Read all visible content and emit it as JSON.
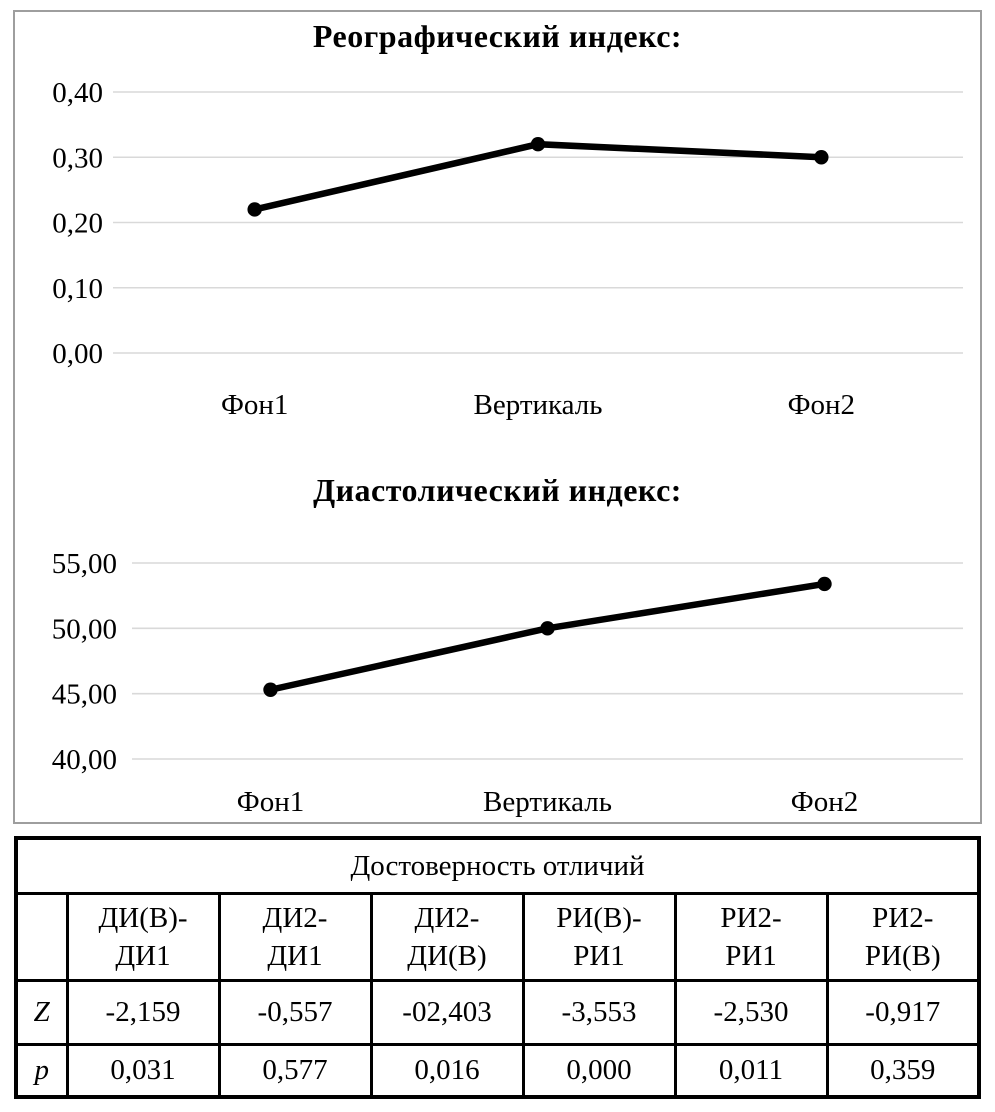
{
  "chart_data": [
    {
      "type": "line",
      "title": "Реографический индекс:",
      "categories": [
        "Фон1",
        "Вертикаль",
        "Фон2"
      ],
      "values": [
        0.22,
        0.32,
        0.3
      ],
      "ylim": [
        0.0,
        0.4
      ],
      "ytick_labels": [
        "0,40",
        "0,30",
        "0,20",
        "0,10",
        "0,00"
      ],
      "ytick_values": [
        0.4,
        0.3,
        0.2,
        0.1,
        0.0
      ],
      "xlabel": "",
      "ylabel": "",
      "grid": true,
      "legend": "none",
      "line_color": "#000000",
      "gridline_color": "#d9d9d9",
      "marker": "circle"
    },
    {
      "type": "line",
      "title": "Диастолический индекс:",
      "categories": [
        "Фон1",
        "Вертикаль",
        "Фон2"
      ],
      "values": [
        45.3,
        50.0,
        53.4
      ],
      "ylim": [
        40.0,
        55.0
      ],
      "ytick_labels": [
        "55,00",
        "50,00",
        "45,00",
        "40,00"
      ],
      "ytick_values": [
        55.0,
        50.0,
        45.0,
        40.0
      ],
      "xlabel": "",
      "ylabel": "",
      "grid": true,
      "legend": "none",
      "line_color": "#000000",
      "gridline_color": "#d9d9d9",
      "marker": "circle"
    }
  ],
  "table": {
    "title": "Достоверность отличий",
    "corner": "",
    "columns": [
      "ДИ(В)-\nДИ1",
      "ДИ2-\nДИ1",
      "ДИ2-\nДИ(В)",
      "РИ(В)-\nРИ1",
      "РИ2-\nРИ1",
      "РИ2-\nРИ(В)"
    ],
    "rows": [
      {
        "label": "Z",
        "values": [
          "-2,159",
          "-0,557",
          "-02,403",
          "-3,553",
          "-2,530",
          "-0,917"
        ]
      },
      {
        "label": "p",
        "values": [
          "0,031",
          "0,577",
          "0,016",
          "0,000",
          "0,011",
          "0,359"
        ]
      }
    ]
  }
}
